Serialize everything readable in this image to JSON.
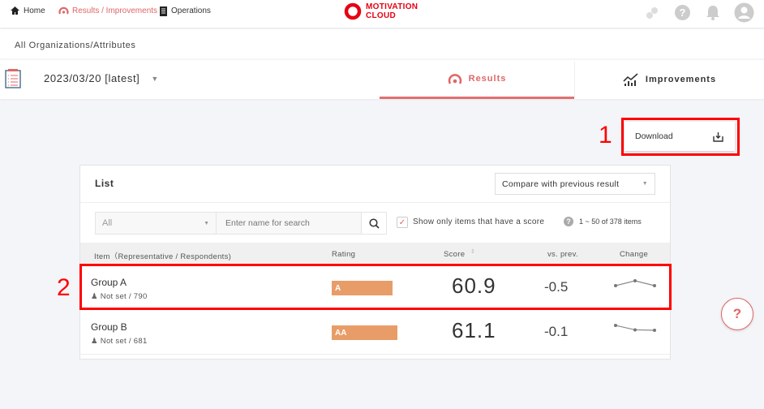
{
  "nav": {
    "home": "Home",
    "results": "Results / Improvements",
    "operations": "Operations"
  },
  "logo": {
    "line1": "MOTIVATION",
    "line2": "CLOUD",
    "color": "#e60012"
  },
  "header_icons": [
    "link-icon",
    "help-icon",
    "bell-icon",
    "avatar-icon"
  ],
  "breadcrumb": "All Organizations/Attributes",
  "date_select": "2023/03/20 [latest]",
  "tabs": [
    {
      "label": "Results",
      "active": true
    },
    {
      "label": "Improvements",
      "active": false
    }
  ],
  "download": {
    "label": "Download",
    "annotation": "1"
  },
  "list": {
    "title": "List",
    "compare_select": "Compare with previous result",
    "filter_select": "All",
    "search_placeholder": "Enter name for search",
    "checkbox_label": "Show only items that have a score",
    "checkbox_checked": true,
    "pagination": "1 ~ 50 of 378 items",
    "columns": [
      "Item（Representative / Respondents)",
      "Rating",
      "Score",
      "vs. prev.",
      "Change"
    ],
    "row_annotation": "2",
    "rows": [
      {
        "name": "Group A",
        "sub": "Not set / 790",
        "rating": "A",
        "score": "60.9",
        "diff": "-0.5",
        "trend": [
          60.9,
          61.4,
          60.9
        ]
      },
      {
        "name": "Group B",
        "sub": "Not set / 681",
        "rating": "AA",
        "score": "61.1",
        "diff": "-0.1",
        "trend": [
          62.2,
          61.2,
          61.1
        ]
      }
    ]
  },
  "colors": {
    "accent": "#e06666",
    "rating_bar": "#e89c68",
    "annotation": "#ff0000"
  }
}
